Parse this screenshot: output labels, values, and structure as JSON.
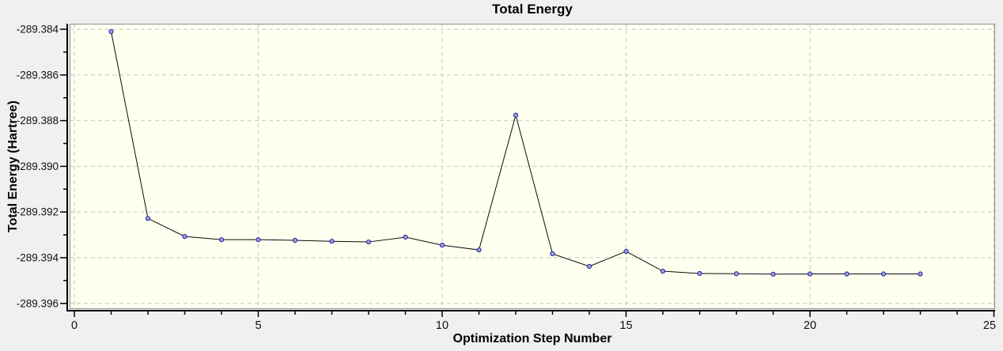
{
  "window": {
    "outer_background": "#f0f0f0"
  },
  "chart_data": {
    "type": "line",
    "title": "Total Energy",
    "xlabel": "Optimization Step Number",
    "ylabel": "Total Energy (Hartree)",
    "x": [
      1,
      2,
      3,
      4,
      5,
      6,
      7,
      8,
      9,
      10,
      11,
      12,
      13,
      14,
      15,
      16,
      17,
      18,
      19,
      20,
      21,
      22,
      23
    ],
    "y": [
      -289.3841,
      -289.39228,
      -289.39307,
      -289.39321,
      -289.39321,
      -289.39324,
      -289.39328,
      -289.39331,
      -289.3931,
      -289.39345,
      -289.39366,
      -289.38776,
      -289.39383,
      -289.39438,
      -289.39372,
      -289.39459,
      -289.39469,
      -289.3947,
      -289.39472,
      -289.39471,
      -289.39471,
      -289.39471,
      -289.39471
    ],
    "xlim": [
      0,
      25
    ],
    "ylim": [
      -289.3962,
      -289.3838
    ],
    "xticks": {
      "values": [
        0,
        5,
        10,
        15,
        20,
        25
      ],
      "labels": [
        "0",
        "5",
        "10",
        "15",
        "20",
        "25"
      ],
      "minor_step": 1
    },
    "yticks": {
      "values": [
        -289.384,
        -289.386,
        -289.388,
        -289.39,
        -289.392,
        -289.394,
        -289.396
      ],
      "labels": [
        "-289.384",
        "-289.386",
        "-289.388",
        "-289.390",
        "-289.392",
        "-289.394",
        "-289.396"
      ],
      "minor_step": 0.001
    },
    "grid": "dashed",
    "legend": "none",
    "marker": "circle",
    "colors": {
      "plot_background": "#fffff0",
      "plot_border": "#8f8f8f",
      "gridline": "#c6c6c6",
      "axis": "#000000",
      "line": "#0a0a0a",
      "marker_fill": "#98a2e2",
      "marker_edge": "#22229a",
      "tick_label": "#111111"
    }
  }
}
